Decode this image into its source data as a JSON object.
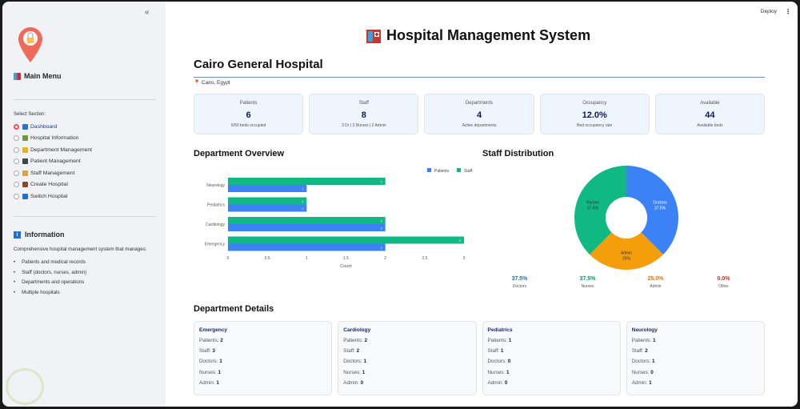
{
  "sidebar": {
    "collapse_icon": "«",
    "menu_title": "Main Menu",
    "select_label": "Select Section:",
    "items": [
      {
        "label": "Dashboard",
        "selected": true,
        "icon": "bar-chart-icon",
        "color": "#2f6fd1"
      },
      {
        "label": "Hospital Information",
        "selected": false,
        "icon": "hospital-icon",
        "color": "#6a9a3a"
      },
      {
        "label": "Department Management",
        "selected": false,
        "icon": "folder-icon",
        "color": "#e6b422"
      },
      {
        "label": "Patient Management",
        "selected": false,
        "icon": "bed-icon",
        "color": "#444444"
      },
      {
        "label": "Staff Management",
        "selected": false,
        "icon": "person-icon",
        "color": "#d9a441"
      },
      {
        "label": "Create Hospital",
        "selected": false,
        "icon": "construction-icon",
        "color": "#8a4b2a"
      },
      {
        "label": "Switch Hospital",
        "selected": false,
        "icon": "switch-icon",
        "color": "#1e6fd9"
      }
    ],
    "info_title": "Information",
    "info_icon": "i",
    "info_desc": "Comprehensive hospital management system that manages:",
    "info_list": [
      "Patients and medical records",
      "Staff (doctors, nurses, admin)",
      "Departments and operations",
      "Multiple hospitals"
    ]
  },
  "toolbar": {
    "deploy_label": "Deploy",
    "menu_icon": "⋮"
  },
  "header": {
    "title": "Hospital Management System"
  },
  "hospital": {
    "name": "Cairo General Hospital",
    "location": "Cairo, Egypt"
  },
  "metrics": [
    {
      "label": "Patients",
      "value": "6",
      "sub": "6/50 beds occupied"
    },
    {
      "label": "Staff",
      "value": "8",
      "sub": "3 Dr | 3 Nurses | 2 Admin"
    },
    {
      "label": "Departments",
      "value": "4",
      "sub": "Active departments"
    },
    {
      "label": "Occupancy",
      "value": "12.0%",
      "sub": "Bed occupancy rate"
    },
    {
      "label": "Available",
      "value": "44",
      "sub": "Available beds"
    }
  ],
  "sections": {
    "dept_overview": "Department Overview",
    "staff_dist": "Staff Distribution",
    "dept_details": "Department Details"
  },
  "chart_data": [
    {
      "type": "bar",
      "orientation": "horizontal",
      "title": "Department Overview",
      "categories": [
        "Emergency",
        "Cardiology",
        "Pediatrics",
        "Neurology"
      ],
      "series": [
        {
          "name": "Patients",
          "color": "#3b82f6",
          "values": [
            2,
            2,
            1,
            1
          ]
        },
        {
          "name": "Staff",
          "color": "#10b981",
          "values": [
            3,
            2,
            1,
            2
          ]
        }
      ],
      "xlabel": "Count",
      "ylabel": "",
      "xlim": [
        0,
        3
      ],
      "xticks": [
        "0",
        "0.5",
        "1",
        "1.5",
        "2",
        "2.5",
        "3"
      ],
      "legend": "top-right",
      "grid": false
    },
    {
      "type": "pie",
      "donut": true,
      "title": "Staff Distribution",
      "labels": [
        "Doctors",
        "Admin",
        "Nurses"
      ],
      "values": [
        37.5,
        25,
        37.5
      ],
      "colors": [
        "#3b82f6",
        "#f59e0b",
        "#10b981"
      ],
      "slice_labels": [
        "37.5%",
        "25%",
        "37.5%"
      ]
    }
  ],
  "staff_pct": [
    {
      "value": "37.5%",
      "label": "Doctors",
      "color": "#2563eb"
    },
    {
      "value": "37.5%",
      "label": "Nurses",
      "color": "#059669"
    },
    {
      "value": "25.0%",
      "label": "Admin",
      "color": "#d97706"
    },
    {
      "value": "0.0%",
      "label": "Other",
      "color": "#dc2626"
    }
  ],
  "departments": [
    {
      "name": "Emergency",
      "rows": [
        [
          "Patients:",
          "2"
        ],
        [
          "Staff:",
          "3"
        ],
        [
          "Doctors:",
          "1"
        ],
        [
          "Nurses:",
          "1"
        ],
        [
          "Admin:",
          "1"
        ]
      ]
    },
    {
      "name": "Cardiology",
      "rows": [
        [
          "Patients:",
          "2"
        ],
        [
          "Staff:",
          "2"
        ],
        [
          "Doctors:",
          "1"
        ],
        [
          "Nurses:",
          "1"
        ],
        [
          "Admin:",
          "0"
        ]
      ]
    },
    {
      "name": "Pediatrics",
      "rows": [
        [
          "Patients:",
          "1"
        ],
        [
          "Staff:",
          "1"
        ],
        [
          "Doctors:",
          "0"
        ],
        [
          "Nurses:",
          "1"
        ],
        [
          "Admin:",
          "0"
        ]
      ]
    },
    {
      "name": "Neurology",
      "rows": [
        [
          "Patients:",
          "1"
        ],
        [
          "Staff:",
          "2"
        ],
        [
          "Doctors:",
          "1"
        ],
        [
          "Nurses:",
          "0"
        ],
        [
          "Admin:",
          "1"
        ]
      ]
    }
  ]
}
